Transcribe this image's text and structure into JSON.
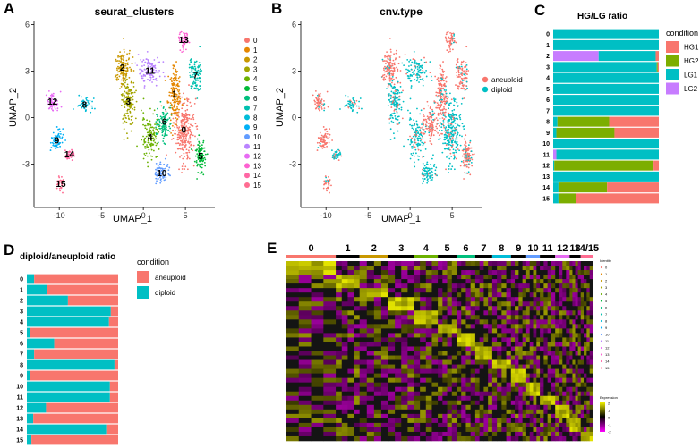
{
  "panels": {
    "A": {
      "label": "A"
    },
    "B": {
      "label": "B"
    },
    "C": {
      "label": "C"
    },
    "D": {
      "label": "D"
    },
    "E": {
      "label": "E"
    }
  },
  "colors": {
    "aneuploid": "#F8766D",
    "diploid": "#00BFC4",
    "HG1": "#F8766D",
    "HG2": "#7CAE00",
    "LG1": "#00BFC4",
    "LG2": "#C77CFF"
  },
  "chart_data": [
    {
      "id": "A",
      "type": "scatter",
      "title": "seurat_clusters",
      "xlabel": "UMAP_1",
      "ylabel": "UMAP_2",
      "xticks": [
        -10,
        -5,
        0,
        5
      ],
      "yticks": [
        -3,
        0,
        3,
        6
      ],
      "xlim": [
        -13,
        8.5
      ],
      "ylim": [
        -5.8,
        6.2
      ],
      "legend_title": "",
      "legend": [
        "0",
        "1",
        "2",
        "3",
        "4",
        "5",
        "6",
        "7",
        "8",
        "9",
        "10",
        "11",
        "12",
        "13",
        "14",
        "15"
      ],
      "cluster_colors": [
        "#F8766D",
        "#E58700",
        "#C99800",
        "#A3A500",
        "#6BB100",
        "#00BA38",
        "#00BF7D",
        "#00C0AF",
        "#00BCD8",
        "#00B0F6",
        "#619CFF",
        "#B983FF",
        "#E76BF3",
        "#FD61D1",
        "#FF67A4",
        "#FF6C91"
      ],
      "clusters": [
        {
          "id": "0",
          "cx": 4.8,
          "cy": -0.8,
          "sx": 1.1,
          "sy": 1.9,
          "n": 260
        },
        {
          "id": "1",
          "cx": 3.7,
          "cy": 1.5,
          "sx": 0.7,
          "sy": 1.6,
          "n": 170
        },
        {
          "id": "2",
          "cx": -2.5,
          "cy": 3.2,
          "sx": 0.9,
          "sy": 1.1,
          "n": 140
        },
        {
          "id": "3",
          "cx": -1.8,
          "cy": 1.0,
          "sx": 0.8,
          "sy": 1.3,
          "n": 150
        },
        {
          "id": "4",
          "cx": 0.8,
          "cy": -1.3,
          "sx": 0.9,
          "sy": 1.3,
          "n": 130
        },
        {
          "id": "5",
          "cx": 6.8,
          "cy": -2.5,
          "sx": 0.6,
          "sy": 0.9,
          "n": 110
        },
        {
          "id": "6",
          "cx": 2.5,
          "cy": -0.3,
          "sx": 0.7,
          "sy": 1.0,
          "n": 110
        },
        {
          "id": "7",
          "cx": 6.2,
          "cy": 2.7,
          "sx": 0.7,
          "sy": 1.0,
          "n": 100
        },
        {
          "id": "8",
          "cx": -7.0,
          "cy": 0.8,
          "sx": 0.8,
          "sy": 0.4,
          "n": 50
        },
        {
          "id": "9",
          "cx": -10.3,
          "cy": -1.5,
          "sx": 0.6,
          "sy": 0.8,
          "n": 70
        },
        {
          "id": "10",
          "cx": 2.2,
          "cy": -3.6,
          "sx": 0.8,
          "sy": 0.6,
          "n": 80
        },
        {
          "id": "11",
          "cx": 0.8,
          "cy": 3.0,
          "sx": 1.2,
          "sy": 0.9,
          "n": 110
        },
        {
          "id": "12",
          "cx": -10.8,
          "cy": 1.0,
          "sx": 0.7,
          "sy": 0.7,
          "n": 60
        },
        {
          "id": "13",
          "cx": 4.8,
          "cy": 5.0,
          "sx": 0.5,
          "sy": 0.5,
          "n": 50
        },
        {
          "id": "14",
          "cx": -8.8,
          "cy": -2.4,
          "sx": 0.5,
          "sy": 0.4,
          "n": 35
        },
        {
          "id": "15",
          "cx": -9.8,
          "cy": -4.3,
          "sx": 0.4,
          "sy": 0.5,
          "n": 30
        }
      ]
    },
    {
      "id": "B",
      "type": "scatter",
      "title": "cnv.type",
      "xlabel": "UMAP_1",
      "ylabel": "UMAP_2",
      "xticks": [
        -10,
        -5,
        0,
        5
      ],
      "yticks": [
        -3,
        0,
        3,
        6
      ],
      "legend": [
        "aneuploid",
        "diploid"
      ]
    },
    {
      "id": "C",
      "type": "bar",
      "orientation": "horizontal",
      "stacked": true,
      "title": "HG/LG ratio",
      "legend_title": "condition",
      "legend": [
        "HG1",
        "HG2",
        "LG1",
        "LG2"
      ],
      "categories": [
        "0",
        "1",
        "2",
        "3",
        "4",
        "5",
        "6",
        "7",
        "8",
        "9",
        "10",
        "11",
        "12",
        "13",
        "14",
        "15"
      ],
      "series": [
        {
          "name": "LG2",
          "values": [
            0,
            0,
            0.43,
            0,
            0,
            0,
            0,
            0,
            0,
            0,
            0,
            0.03,
            0,
            0,
            0,
            0
          ]
        },
        {
          "name": "LG1",
          "values": [
            1,
            1,
            0.54,
            0.98,
            1,
            1,
            1,
            1,
            0.04,
            0.03,
            1,
            0.97,
            0.01,
            1,
            0.05,
            0.05
          ]
        },
        {
          "name": "HG2",
          "values": [
            0,
            0,
            0,
            0.01,
            0,
            0,
            0,
            0,
            0.49,
            0.55,
            0,
            0,
            0.94,
            0,
            0.46,
            0.17
          ]
        },
        {
          "name": "HG1",
          "values": [
            0,
            0,
            0.03,
            0.01,
            0,
            0,
            0,
            0,
            0.47,
            0.42,
            0,
            0,
            0.05,
            0,
            0.49,
            0.78
          ]
        }
      ]
    },
    {
      "id": "D",
      "type": "bar",
      "orientation": "horizontal",
      "stacked": true,
      "title": "diploid/aneuploid ratio",
      "legend_title": "condition",
      "legend": [
        "aneuploid",
        "diploid"
      ],
      "categories": [
        "0",
        "1",
        "2",
        "3",
        "4",
        "5",
        "6",
        "7",
        "8",
        "9",
        "10",
        "11",
        "12",
        "13",
        "14",
        "15"
      ],
      "series": [
        {
          "name": "diploid",
          "values": [
            0.08,
            0.22,
            0.45,
            0.92,
            0.9,
            0.03,
            0.3,
            0.08,
            0.96,
            0.03,
            0.91,
            0.91,
            0.21,
            0.07,
            0.87,
            0.05
          ]
        },
        {
          "name": "aneuploid",
          "values": [
            0.92,
            0.78,
            0.55,
            0.08,
            0.1,
            0.97,
            0.7,
            0.92,
            0.04,
            0.97,
            0.09,
            0.09,
            0.79,
            0.93,
            0.13,
            0.95
          ]
        }
      ]
    },
    {
      "id": "E",
      "type": "heatmap",
      "column_groups": [
        "0",
        "1",
        "2",
        "3",
        "4",
        "5",
        "6",
        "7",
        "8",
        "9",
        "10",
        "11",
        "12",
        "13",
        "14/15"
      ],
      "identity_legend_title": "Identity",
      "identity_legend": [
        "0",
        "1",
        "2",
        "3",
        "4",
        "5",
        "6",
        "7",
        "8",
        "9",
        "10",
        "11",
        "12",
        "13",
        "14",
        "15"
      ],
      "expression_legend_title": "Expression",
      "expression_ticks": [
        "2",
        "1",
        "0",
        "-1",
        "-2"
      ],
      "group_bar_colors": [
        "#F8766D",
        "#000000",
        "#C99800",
        "#000000",
        "#6BB100",
        "#000000",
        "#00BF7D",
        "#000000",
        "#00BCD8",
        "#000000",
        "#619CFF",
        "#000000",
        "#E76BF3",
        "#000000",
        "#FF6C91"
      ]
    }
  ]
}
